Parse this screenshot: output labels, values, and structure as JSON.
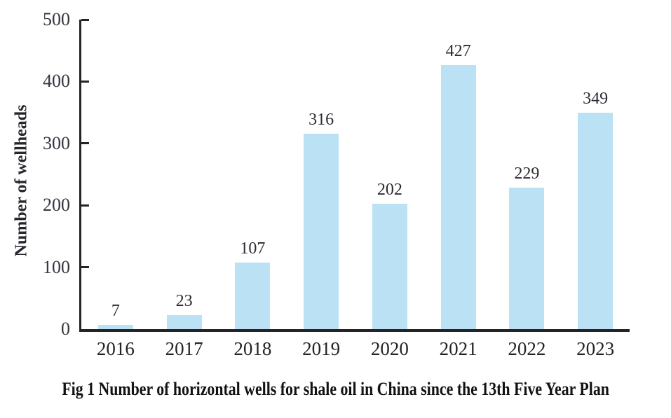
{
  "figure": {
    "caption": "Fig 1 Number of horizontal wells for shale oil in China since the 13th Five Year Plan"
  },
  "chart_data": {
    "type": "bar",
    "title": "",
    "categories": [
      "2016",
      "2017",
      "2018",
      "2019",
      "2020",
      "2021",
      "2022",
      "2023"
    ],
    "values": [
      7,
      23,
      107,
      316,
      202,
      427,
      229,
      349
    ],
    "xlabel": "",
    "ylabel": "Number of wellheads",
    "ylim": [
      0,
      500
    ],
    "yticks": [
      0,
      100,
      200,
      300,
      400,
      500
    ],
    "grid": false,
    "legend_position": "none",
    "bar_color": "#BAE1F4",
    "axis_color": "#242428",
    "tick_label_color": "#35353f",
    "value_label_color": "#2b2b33"
  }
}
